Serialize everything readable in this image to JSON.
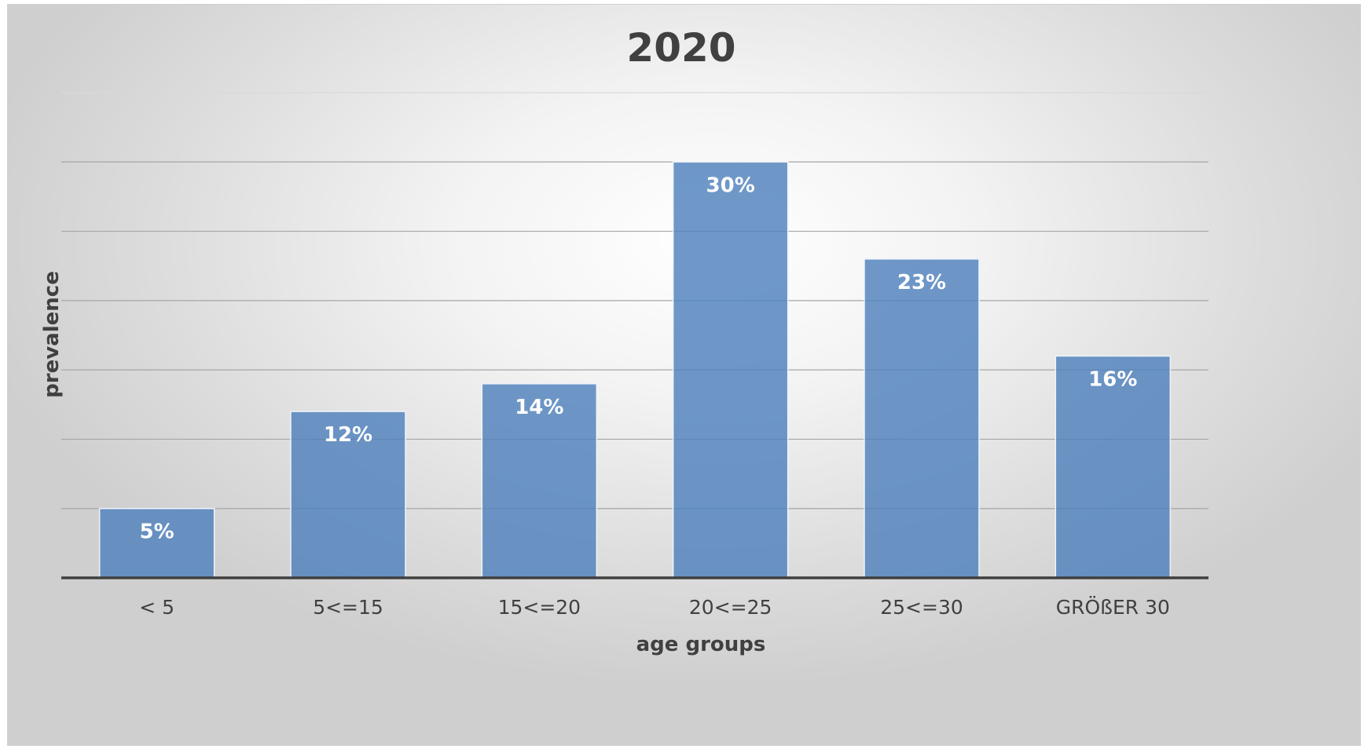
{
  "chart_data": {
    "type": "bar",
    "title": "2020",
    "xlabel": "age groups",
    "ylabel": "prevalence",
    "categories": [
      "< 5",
      "5<=15",
      "15<=20",
      "20<=25",
      "25<=30",
      "GRÖßER 30"
    ],
    "values": [
      5,
      12,
      14,
      30,
      23,
      16
    ],
    "data_labels": [
      "5%",
      "12%",
      "14%",
      "30%",
      "23%",
      "16%"
    ],
    "ylim": [
      0,
      35
    ],
    "grid_step": 5,
    "grid": true,
    "legend": "none",
    "colors": {
      "bar": "#4f81bd",
      "text": "#404040",
      "gridline": "#a6a6a6"
    }
  }
}
